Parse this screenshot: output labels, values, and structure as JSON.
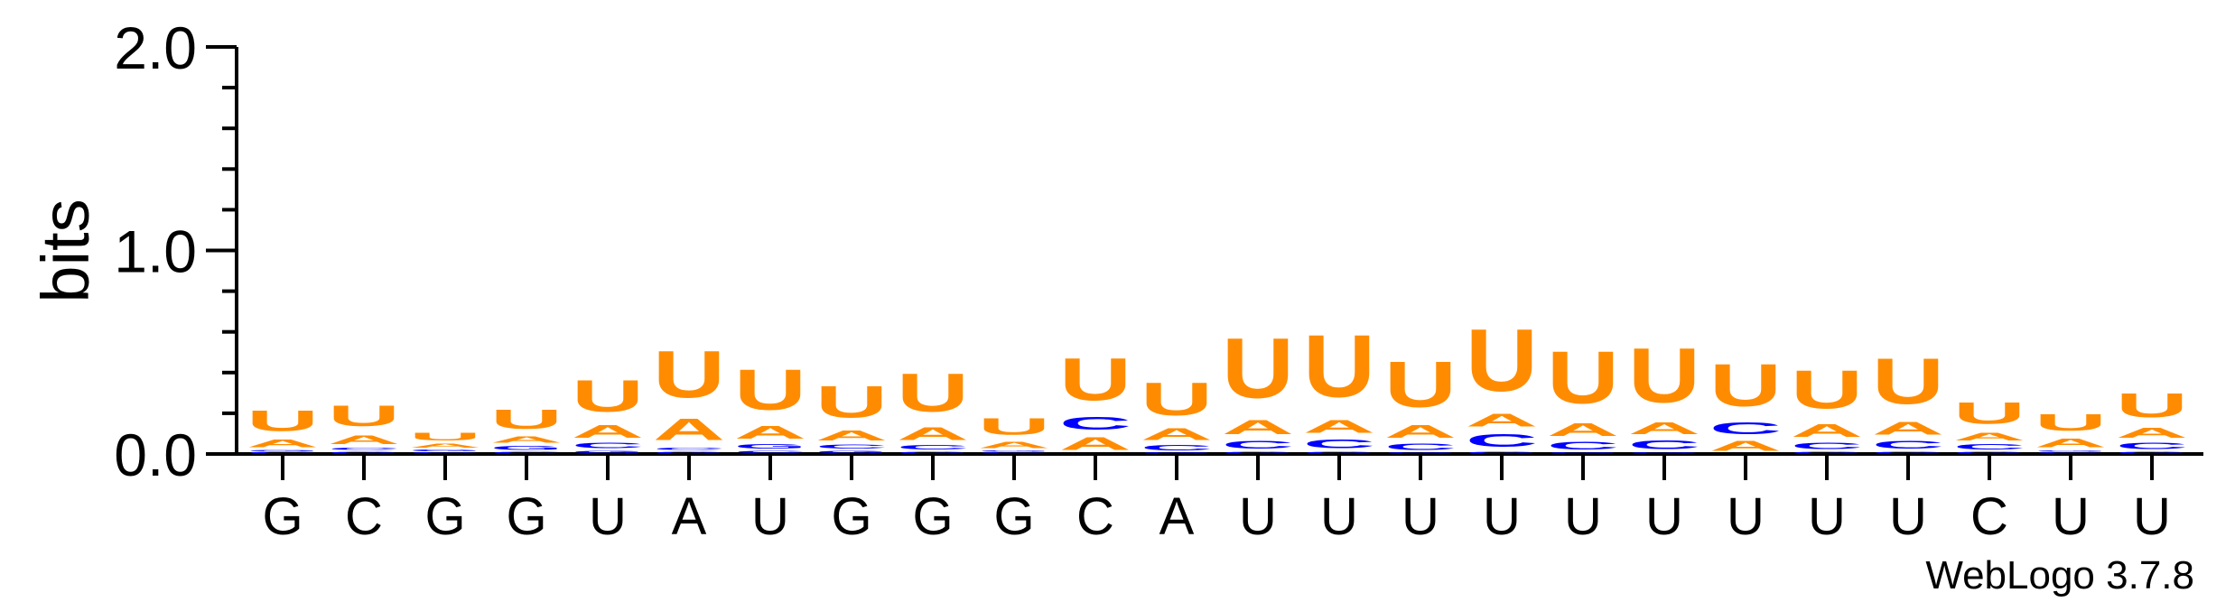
{
  "chart_data": {
    "type": "sequence-logo",
    "title": "",
    "xlabel": "",
    "ylabel": "bits",
    "ylim": [
      0,
      2
    ],
    "yticks": [
      "0.0",
      "1.0",
      "2.0"
    ],
    "credit": "WebLogo 3.7.8",
    "colors": {
      "U": "#ff8c00",
      "A": "#ff8c00",
      "C": "#0000ff",
      "G": "#0000ff"
    },
    "positions": [
      {
        "label": "G",
        "stack": [
          {
            "base": "C",
            "bits": 0.012
          },
          {
            "base": "G",
            "bits": 0.01
          },
          {
            "base": "A",
            "bits": 0.06
          },
          {
            "base": "U",
            "bits": 0.16
          }
        ]
      },
      {
        "label": "C",
        "stack": [
          {
            "base": "G",
            "bits": 0.015
          },
          {
            "base": "C",
            "bits": 0.02
          },
          {
            "base": "A",
            "bits": 0.07
          },
          {
            "base": "U",
            "bits": 0.16
          }
        ]
      },
      {
        "label": "G",
        "stack": [
          {
            "base": "C",
            "bits": 0.01
          },
          {
            "base": "G",
            "bits": 0.015
          },
          {
            "base": "A",
            "bits": 0.03
          },
          {
            "base": "U",
            "bits": 0.06
          }
        ]
      },
      {
        "label": "G",
        "stack": [
          {
            "base": "C",
            "bits": 0.015
          },
          {
            "base": "G",
            "bits": 0.03
          },
          {
            "base": "A",
            "bits": 0.05
          },
          {
            "base": "U",
            "bits": 0.15
          }
        ]
      },
      {
        "label": "U",
        "stack": [
          {
            "base": "G",
            "bits": 0.02
          },
          {
            "base": "C",
            "bits": 0.04
          },
          {
            "base": "A",
            "bits": 0.1
          },
          {
            "base": "U",
            "bits": 0.25
          }
        ]
      },
      {
        "label": "A",
        "stack": [
          {
            "base": "G",
            "bits": 0.015
          },
          {
            "base": "C",
            "bits": 0.02
          },
          {
            "base": "A",
            "bits": 0.17
          },
          {
            "base": "U",
            "bits": 0.37
          }
        ]
      },
      {
        "label": "U",
        "stack": [
          {
            "base": "C",
            "bits": 0.02
          },
          {
            "base": "G",
            "bits": 0.035
          },
          {
            "base": "A",
            "bits": 0.1
          },
          {
            "base": "U",
            "bits": 0.32
          }
        ]
      },
      {
        "label": "G",
        "stack": [
          {
            "base": "G",
            "bits": 0.02
          },
          {
            "base": "C",
            "bits": 0.03
          },
          {
            "base": "A",
            "bits": 0.08
          },
          {
            "base": "U",
            "bits": 0.25
          }
        ]
      },
      {
        "label": "G",
        "stack": [
          {
            "base": "G",
            "bits": 0.015
          },
          {
            "base": "C",
            "bits": 0.035
          },
          {
            "base": "A",
            "bits": 0.1
          },
          {
            "base": "U",
            "bits": 0.3
          }
        ]
      },
      {
        "label": "G",
        "stack": [
          {
            "base": "C",
            "bits": 0.01
          },
          {
            "base": "G",
            "bits": 0.01
          },
          {
            "base": "A",
            "bits": 0.05
          },
          {
            "base": "U",
            "bits": 0.13
          }
        ]
      },
      {
        "label": "C",
        "stack": [
          {
            "base": "A",
            "bits": 0.1
          },
          {
            "base": "C",
            "bits": 0.1
          },
          {
            "base": "U",
            "bits": 0.33
          }
        ]
      },
      {
        "label": "A",
        "stack": [
          {
            "base": "G",
            "bits": 0.01
          },
          {
            "base": "C",
            "bits": 0.04
          },
          {
            "base": "A",
            "bits": 0.09
          },
          {
            "base": "U",
            "bits": 0.26
          }
        ]
      },
      {
        "label": "U",
        "stack": [
          {
            "base": "G",
            "bits": 0.015
          },
          {
            "base": "C",
            "bits": 0.06
          },
          {
            "base": "A",
            "bits": 0.11
          },
          {
            "base": "U",
            "bits": 0.47
          }
        ]
      },
      {
        "label": "U",
        "stack": [
          {
            "base": "G",
            "bits": 0.015
          },
          {
            "base": "C",
            "bits": 0.07
          },
          {
            "base": "A",
            "bits": 0.1
          },
          {
            "base": "U",
            "bits": 0.49
          }
        ]
      },
      {
        "label": "U",
        "stack": [
          {
            "base": "G",
            "bits": 0.01
          },
          {
            "base": "C",
            "bits": 0.05
          },
          {
            "base": "A",
            "bits": 0.1
          },
          {
            "base": "U",
            "bits": 0.36
          }
        ]
      },
      {
        "label": "U",
        "stack": [
          {
            "base": "G",
            "bits": 0.015
          },
          {
            "base": "C",
            "bits": 0.1
          },
          {
            "base": "A",
            "bits": 0.1
          },
          {
            "base": "U",
            "bits": 0.49
          }
        ]
      },
      {
        "label": "U",
        "stack": [
          {
            "base": "G",
            "bits": 0.01
          },
          {
            "base": "C",
            "bits": 0.06
          },
          {
            "base": "A",
            "bits": 0.1
          },
          {
            "base": "U",
            "bits": 0.41
          }
        ]
      },
      {
        "label": "U",
        "stack": [
          {
            "base": "G",
            "bits": 0.01
          },
          {
            "base": "C",
            "bits": 0.07
          },
          {
            "base": "A",
            "bits": 0.09
          },
          {
            "base": "U",
            "bits": 0.43
          }
        ]
      },
      {
        "label": "U",
        "stack": [
          {
            "base": "A",
            "bits": 0.08
          },
          {
            "base": "C",
            "bits": 0.09
          },
          {
            "base": "U",
            "bits": 0.33
          }
        ]
      },
      {
        "label": "U",
        "stack": [
          {
            "base": "G",
            "bits": 0.015
          },
          {
            "base": "C",
            "bits": 0.05
          },
          {
            "base": "A",
            "bits": 0.1
          },
          {
            "base": "U",
            "bits": 0.3
          }
        ]
      },
      {
        "label": "U",
        "stack": [
          {
            "base": "G",
            "bits": 0.015
          },
          {
            "base": "C",
            "bits": 0.06
          },
          {
            "base": "A",
            "bits": 0.1
          },
          {
            "base": "U",
            "bits": 0.36
          }
        ]
      },
      {
        "label": "C",
        "stack": [
          {
            "base": "G",
            "bits": 0.015
          },
          {
            "base": "C",
            "bits": 0.04
          },
          {
            "base": "A",
            "bits": 0.06
          },
          {
            "base": "U",
            "bits": 0.17
          }
        ]
      },
      {
        "label": "U",
        "stack": [
          {
            "base": "C",
            "bits": 0.01
          },
          {
            "base": "G",
            "bits": 0.01
          },
          {
            "base": "A",
            "bits": 0.07
          },
          {
            "base": "U",
            "bits": 0.13
          }
        ]
      },
      {
        "label": "U",
        "stack": [
          {
            "base": "G",
            "bits": 0.015
          },
          {
            "base": "C",
            "bits": 0.05
          },
          {
            "base": "A",
            "bits": 0.08
          },
          {
            "base": "U",
            "bits": 0.19
          }
        ]
      }
    ]
  }
}
